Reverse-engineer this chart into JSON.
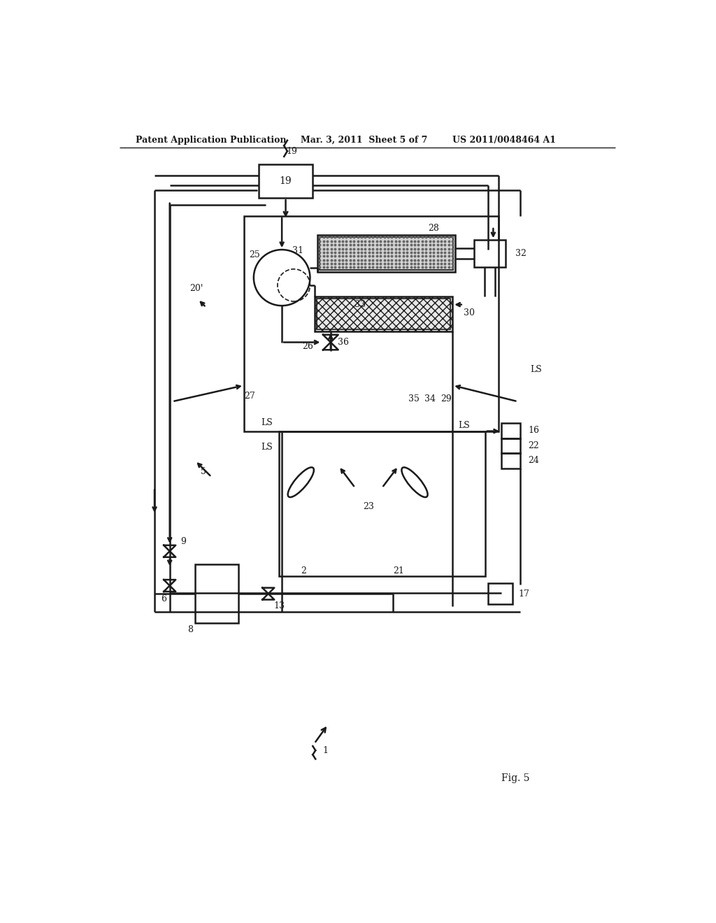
{
  "title_left": "Patent Application Publication",
  "title_mid": "Mar. 3, 2011  Sheet 5 of 7",
  "title_right": "US 2011/0048464 A1",
  "bg_color": "#ffffff",
  "line_color": "#1a1a1a"
}
